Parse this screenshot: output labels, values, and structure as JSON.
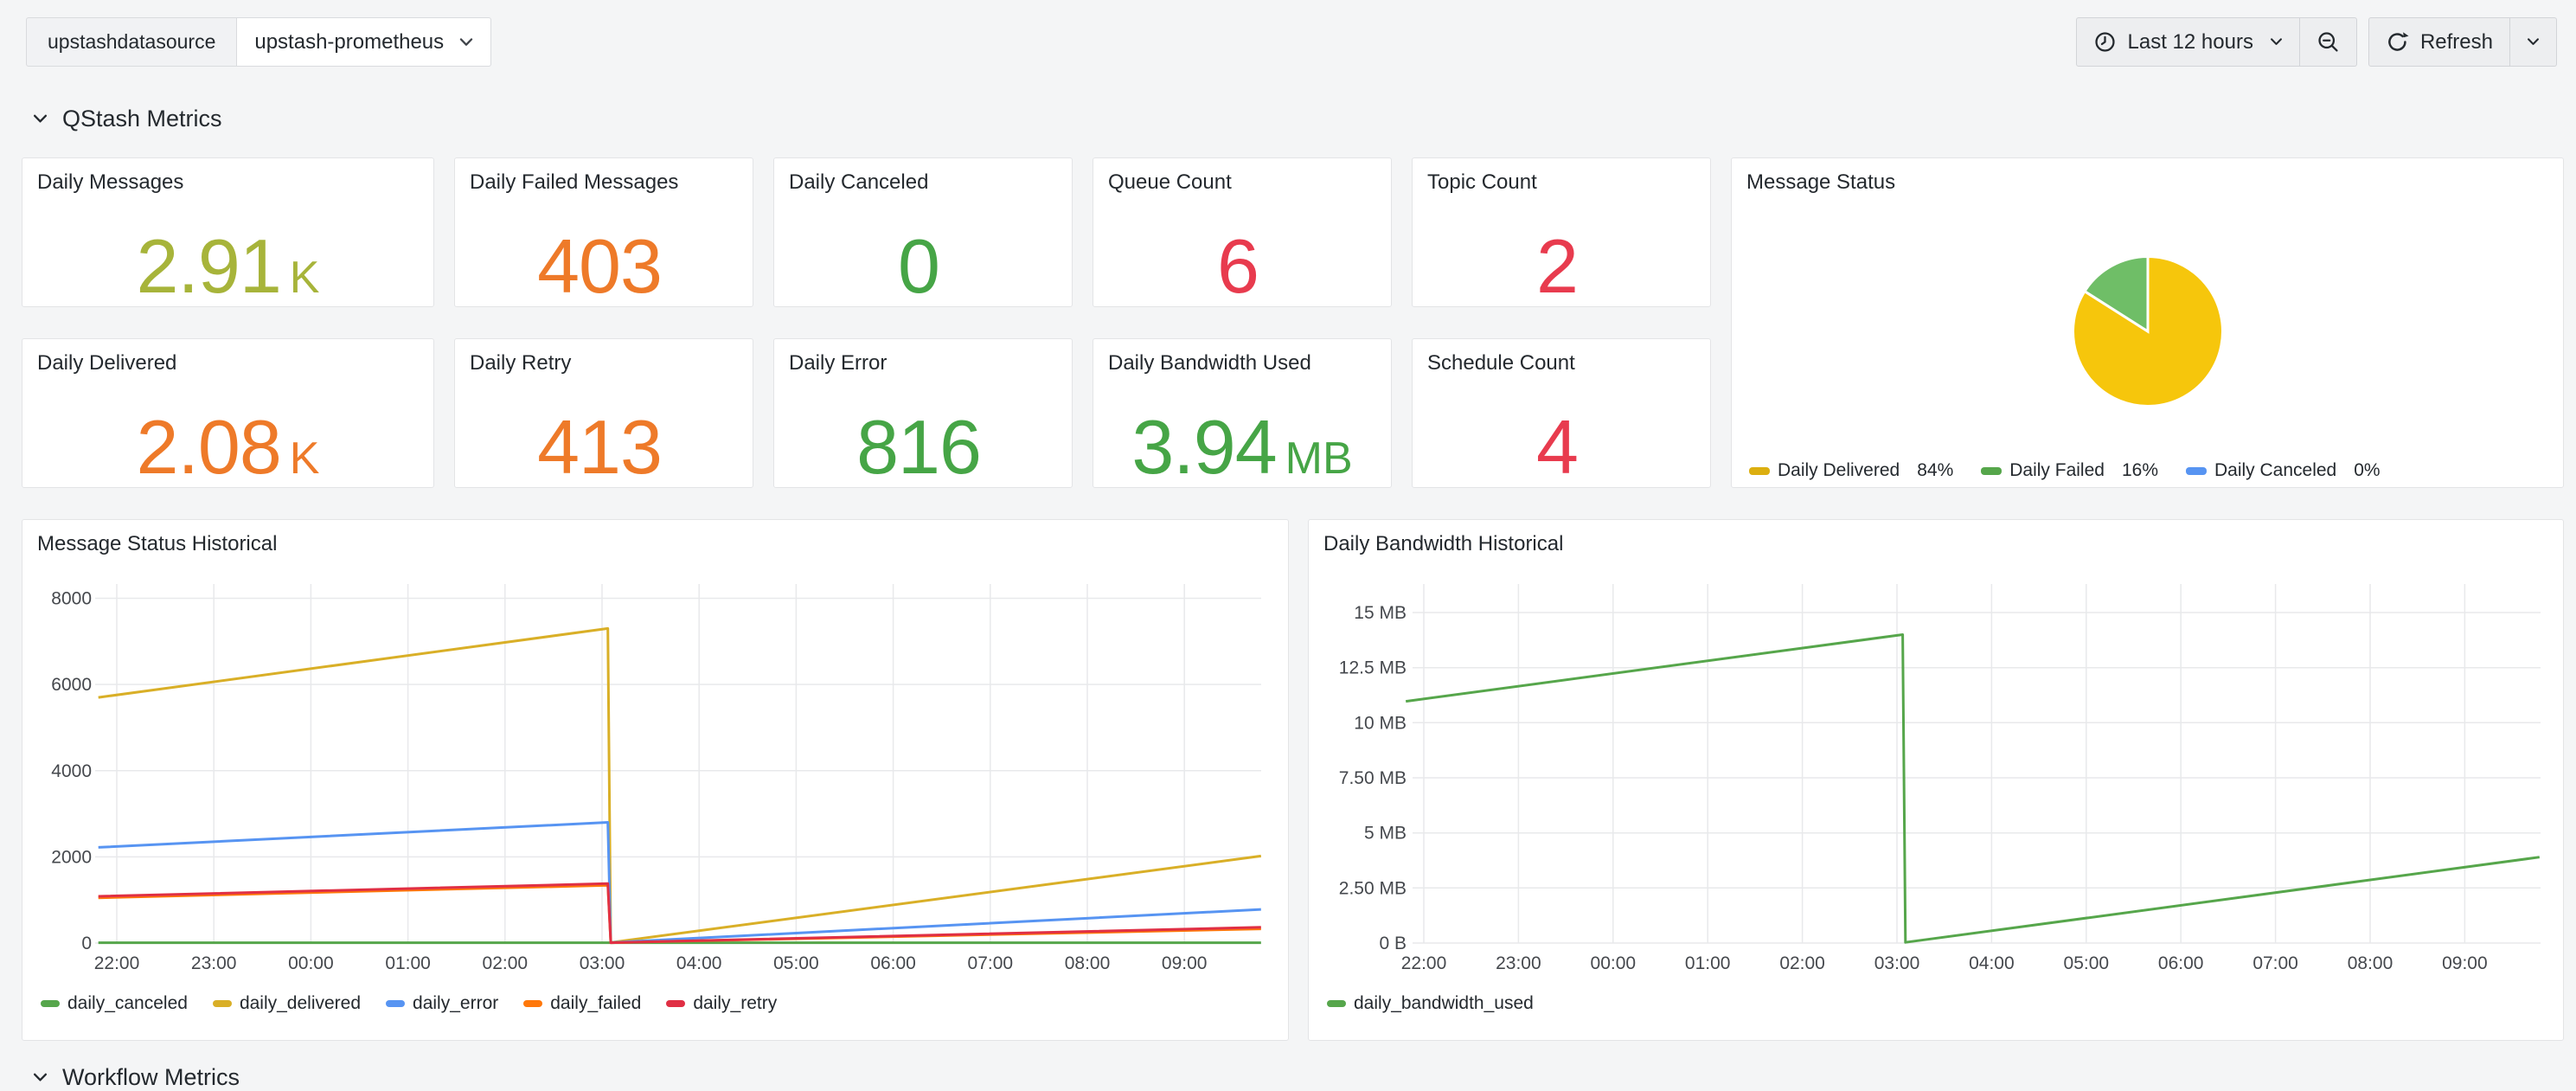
{
  "topbar": {
    "variable_label": "upstashdatasource",
    "variable_value": "upstash-prometheus",
    "time_range": "Last 12 hours",
    "refresh_label": "Refresh",
    "icons": {
      "time_picker": "clock-icon",
      "zoom_out": "magnifier-minus-icon",
      "refresh": "refresh-cycle-icon",
      "dropdown": "chevron-down-icon"
    }
  },
  "sections": {
    "qstash": "QStash Metrics",
    "workflow": "Workflow Metrics"
  },
  "colors": {
    "olive": "#A7B43A",
    "orange": "#EE7A29",
    "green": "#46A546",
    "red": "#E83B4E",
    "page_bg": "#F4F5F6",
    "panel_bg": "#FFFFFF"
  },
  "stats": [
    {
      "title": "Daily Messages",
      "value": "2.91",
      "suffix": "K",
      "color": "#A7B43A"
    },
    {
      "title": "Daily Failed Messages",
      "value": "403",
      "suffix": "",
      "color": "#EE7A29"
    },
    {
      "title": "Daily Canceled",
      "value": "0",
      "suffix": "",
      "color": "#46A546"
    },
    {
      "title": "Queue Count",
      "value": "6",
      "suffix": "",
      "color": "#E83B4E"
    },
    {
      "title": "Topic Count",
      "value": "2",
      "suffix": "",
      "color": "#E83B4E"
    },
    {
      "title": "Daily Delivered",
      "value": "2.08",
      "suffix": "K",
      "color": "#EE7A29"
    },
    {
      "title": "Daily Retry",
      "value": "413",
      "suffix": "",
      "color": "#EE7A29"
    },
    {
      "title": "Daily Error",
      "value": "816",
      "suffix": "",
      "color": "#46A546"
    },
    {
      "title": "Daily Bandwidth Used",
      "value": "3.94",
      "suffix": "MB",
      "color": "#46A546"
    },
    {
      "title": "Schedule Count",
      "value": "4",
      "suffix": "",
      "color": "#E83B4E"
    }
  ],
  "pie": {
    "title": "Message Status",
    "slices": [
      {
        "label": "Daily Delivered",
        "pct": 84,
        "fill": "#F6C60C",
        "color": "#DCAF10"
      },
      {
        "label": "Daily Failed",
        "pct": 16,
        "fill": "#6FBE67",
        "color": "#56A64B"
      },
      {
        "label": "Daily Canceled",
        "pct": 0,
        "fill": "#5794F2",
        "color": "#5794F2"
      }
    ]
  },
  "chart_data": [
    {
      "type": "line",
      "title": "Message Status Historical",
      "x_tick_labels": [
        "22:00",
        "23:00",
        "00:00",
        "01:00",
        "02:00",
        "03:00",
        "04:00",
        "05:00",
        "06:00",
        "07:00",
        "08:00",
        "09:00"
      ],
      "y_tick_values": [
        0,
        2000,
        4000,
        6000,
        8000
      ],
      "y_tick_labels": [
        "0",
        "2000",
        "4000",
        "6000",
        "8000"
      ],
      "ylim": [
        0,
        8300
      ],
      "legend_position": "bottom",
      "grid": true,
      "series": [
        {
          "name": "daily_canceled",
          "color": "#56A64B",
          "points": [
            [
              -0.19,
              8
            ],
            [
              11.79,
              8
            ]
          ]
        },
        {
          "name": "daily_delivered",
          "color": "#D9AF27",
          "points": [
            [
              -0.19,
              5700
            ],
            [
              5.06,
              7300
            ],
            [
              5.09,
              15
            ],
            [
              11.79,
              2020
            ]
          ]
        },
        {
          "name": "daily_error",
          "color": "#5794F2",
          "points": [
            [
              -0.19,
              2220
            ],
            [
              5.06,
              2800
            ],
            [
              5.09,
              12
            ],
            [
              11.79,
              780
            ]
          ]
        },
        {
          "name": "daily_failed",
          "color": "#FF780A",
          "points": [
            [
              -0.19,
              1050
            ],
            [
              5.06,
              1340
            ],
            [
              5.09,
              8
            ],
            [
              11.79,
              330
            ]
          ]
        },
        {
          "name": "daily_retry",
          "color": "#E02F44",
          "points": [
            [
              -0.19,
              1085
            ],
            [
              5.06,
              1380
            ],
            [
              5.09,
              8
            ],
            [
              11.79,
              365
            ]
          ]
        }
      ]
    },
    {
      "type": "line",
      "title": "Daily Bandwidth Historical",
      "x_tick_labels": [
        "22:00",
        "23:00",
        "00:00",
        "01:00",
        "02:00",
        "03:00",
        "04:00",
        "05:00",
        "06:00",
        "07:00",
        "08:00",
        "09:00"
      ],
      "y_tick_values": [
        0,
        2.5,
        5,
        7.5,
        10,
        12.5,
        15
      ],
      "y_tick_labels": [
        "0 B",
        "2.50 MB",
        "5 MB",
        "7.50 MB",
        "10 MB",
        "12.5 MB",
        "15 MB"
      ],
      "ylim": [
        0,
        16.2
      ],
      "legend_position": "bottom",
      "grid": true,
      "series": [
        {
          "name": "daily_bandwidth_used",
          "color": "#56A64B",
          "points": [
            [
              -0.19,
              10.97
            ],
            [
              5.06,
              14.0
            ],
            [
              5.09,
              0.03
            ],
            [
              11.79,
              3.9
            ]
          ]
        }
      ]
    }
  ]
}
